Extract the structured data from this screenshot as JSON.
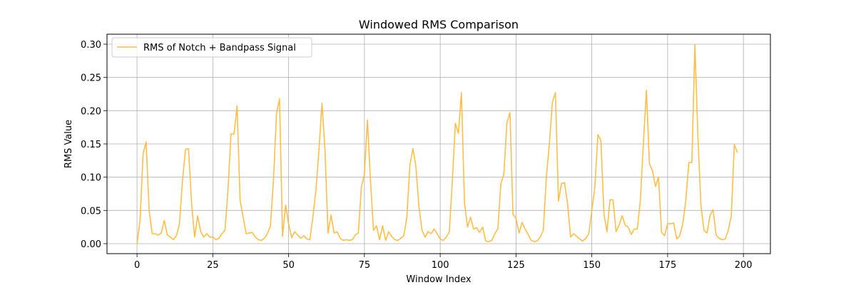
{
  "chart_data": {
    "type": "line",
    "title": "Windowed RMS Comparison",
    "xlabel": "Window Index",
    "ylabel": "RMS Value",
    "xlim": [
      -9.9,
      208.9
    ],
    "ylim": [
      -0.015,
      0.315
    ],
    "xticks": [
      0,
      25,
      50,
      75,
      100,
      125,
      150,
      175,
      200
    ],
    "yticks": [
      0.0,
      0.05,
      0.1,
      0.15,
      0.2,
      0.25,
      0.3
    ],
    "ytick_labels": [
      "0.00",
      "0.05",
      "0.10",
      "0.15",
      "0.20",
      "0.25",
      "0.30"
    ],
    "grid": true,
    "legend_position": "upper-left",
    "series": [
      {
        "name": "RMS of Notch + Bandpass Signal",
        "color": "#ffb732",
        "x_start": 0,
        "values": [
          0.0,
          0.035,
          0.135,
          0.153,
          0.05,
          0.015,
          0.015,
          0.013,
          0.016,
          0.035,
          0.013,
          0.01,
          0.006,
          0.012,
          0.03,
          0.095,
          0.142,
          0.143,
          0.06,
          0.01,
          0.042,
          0.018,
          0.01,
          0.015,
          0.01,
          0.01,
          0.006,
          0.008,
          0.015,
          0.02,
          0.08,
          0.165,
          0.165,
          0.207,
          0.065,
          0.04,
          0.015,
          0.016,
          0.017,
          0.01,
          0.006,
          0.005,
          0.008,
          0.015,
          0.027,
          0.095,
          0.195,
          0.218,
          0.011,
          0.058,
          0.03,
          0.009,
          0.018,
          0.013,
          0.008,
          0.012,
          0.007,
          0.006,
          0.04,
          0.08,
          0.14,
          0.211,
          0.14,
          0.016,
          0.043,
          0.016,
          0.018,
          0.008,
          0.005,
          0.006,
          0.005,
          0.006,
          0.013,
          0.016,
          0.085,
          0.105,
          0.186,
          0.095,
          0.02,
          0.027,
          0.006,
          0.027,
          0.005,
          0.018,
          0.011,
          0.006,
          0.005,
          0.008,
          0.012,
          0.04,
          0.118,
          0.143,
          0.115,
          0.055,
          0.02,
          0.01,
          0.018,
          0.015,
          0.022,
          0.015,
          0.007,
          0.005,
          0.01,
          0.018,
          0.095,
          0.181,
          0.166,
          0.227,
          0.062,
          0.025,
          0.04,
          0.022,
          0.024,
          0.017,
          0.025,
          0.004,
          0.003,
          0.005,
          0.015,
          0.022,
          0.09,
          0.105,
          0.182,
          0.197,
          0.044,
          0.038,
          0.016,
          0.032,
          0.022,
          0.014,
          0.005,
          0.003,
          0.004,
          0.01,
          0.02,
          0.1,
          0.15,
          0.213,
          0.227,
          0.064,
          0.09,
          0.092,
          0.06,
          0.01,
          0.015,
          0.011,
          0.007,
          0.004,
          0.008,
          0.015,
          0.05,
          0.085,
          0.164,
          0.155,
          0.045,
          0.018,
          0.066,
          0.066,
          0.018,
          0.028,
          0.042,
          0.028,
          0.025,
          0.014,
          0.022,
          0.022,
          0.065,
          0.15,
          0.231,
          0.12,
          0.11,
          0.086,
          0.1,
          0.017,
          0.012,
          0.03,
          0.03,
          0.031,
          0.007,
          0.012,
          0.03,
          0.065,
          0.122,
          0.122,
          0.299,
          0.16,
          0.057,
          0.02,
          0.016,
          0.043,
          0.051,
          0.013,
          0.008,
          0.006,
          0.007,
          0.02,
          0.042,
          0.149,
          0.137
        ]
      }
    ]
  }
}
